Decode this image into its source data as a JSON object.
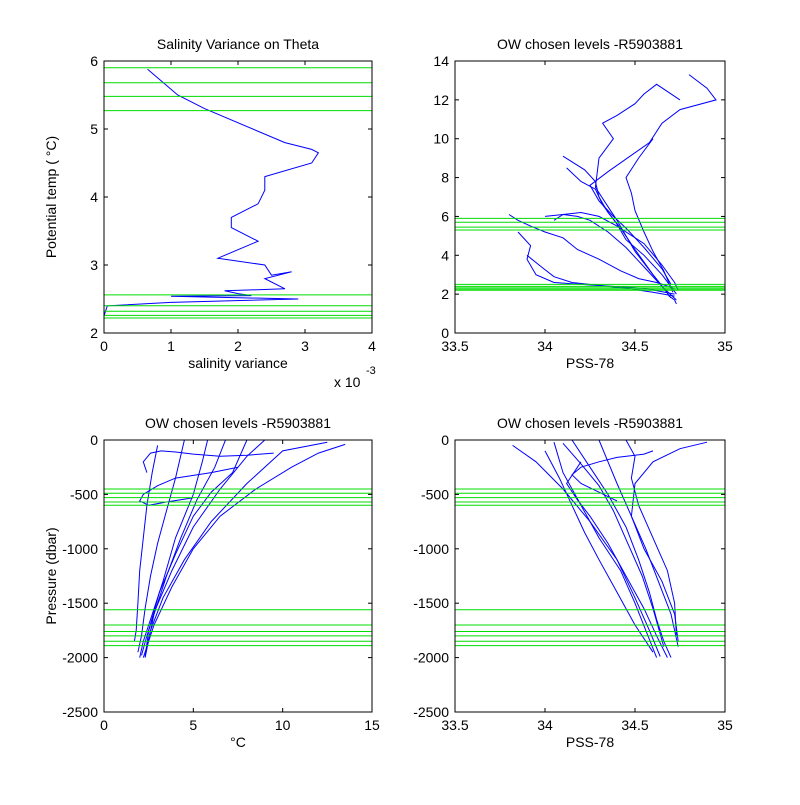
{
  "colors": {
    "profile": "#0000ff",
    "levels": "#00dd00",
    "axes": "#000000",
    "background": "#ffffff"
  },
  "chart_data": [
    {
      "type": "line",
      "title": "Salinity Variance on Theta",
      "xlabel": "salinity variance",
      "ylabel": "Potential temp ( °C)",
      "x_multiplier": "x 10",
      "x_exponent": "-3",
      "xlim": [
        0,
        0.004
      ],
      "ylim": [
        2,
        6
      ],
      "xticks": [
        0,
        0.001,
        0.002,
        0.003,
        0.004
      ],
      "xtick_labels": [
        "0",
        "1",
        "2",
        "3",
        "4"
      ],
      "yticks": [
        2,
        3,
        4,
        5,
        6
      ],
      "ytick_labels": [
        "2",
        "3",
        "4",
        "5",
        "6"
      ],
      "grid": false,
      "series": [
        {
          "x": [
            0.00065,
            0.0011,
            0.0015,
            0.0027,
            0.0031,
            0.0032,
            0.0031,
            0.0024,
            0.0024,
            0.0023,
            0.0019,
            0.0019,
            0.0023,
            0.0017,
            0.0024,
            0.0025,
            0.0028,
            0.0024,
            0.0027,
            0.0018,
            0.002,
            0.0022,
            0.001,
            0.0029,
            0.001,
            5e-05,
            0.0
          ],
          "y": [
            5.88,
            5.5,
            5.3,
            4.8,
            4.7,
            4.65,
            4.5,
            4.3,
            4.1,
            3.9,
            3.7,
            3.55,
            3.35,
            3.1,
            3.0,
            2.85,
            2.9,
            2.8,
            2.65,
            2.62,
            2.58,
            2.55,
            2.54,
            2.5,
            2.45,
            2.4,
            2.25
          ]
        }
      ],
      "hlines": [
        5.9,
        5.68,
        5.48,
        5.27,
        2.56,
        2.4,
        2.32,
        2.26,
        2.22
      ]
    },
    {
      "type": "line",
      "title": "OW chosen levels -R5903881",
      "xlabel": "PSS-78",
      "ylabel": "",
      "xlim": [
        33.5,
        35
      ],
      "ylim": [
        0,
        14
      ],
      "xticks": [
        33.5,
        34,
        34.5,
        35
      ],
      "xtick_labels": [
        "33.5",
        "34",
        "34.5",
        "35"
      ],
      "yticks": [
        0,
        2,
        4,
        6,
        8,
        10,
        12,
        14
      ],
      "ytick_labels": [
        "0",
        "2",
        "4",
        "6",
        "8",
        "10",
        "12",
        "14"
      ],
      "grid": false,
      "series": [
        {
          "x": [
            34.73,
            34.72,
            34.69,
            34.67,
            34.6,
            34.5,
            34.45,
            34.4,
            34.35,
            34.28,
            34.3,
            34.38,
            34.32,
            34.4,
            34.5,
            34.55,
            34.62,
            34.75
          ],
          "y": [
            1.5,
            1.7,
            1.9,
            2.2,
            3.0,
            4.2,
            5.0,
            5.8,
            6.5,
            7.5,
            9.0,
            10.0,
            10.8,
            11.2,
            11.8,
            12.3,
            12.8,
            12.0
          ]
        },
        {
          "x": [
            34.73,
            34.65,
            34.55,
            34.45,
            34.35,
            34.25,
            34.18,
            34.1,
            34.0
          ],
          "y": [
            1.7,
            2.4,
            3.4,
            4.4,
            5.2,
            5.8,
            6.0,
            6.1,
            6.0
          ]
        },
        {
          "x": [
            34.72,
            34.55,
            34.38,
            34.2,
            34.05,
            33.95,
            33.9,
            33.92,
            33.85
          ],
          "y": [
            2.0,
            2.3,
            2.4,
            2.5,
            2.6,
            3.0,
            3.8,
            4.5,
            5.2
          ]
        },
        {
          "x": [
            34.7,
            34.6,
            34.5,
            34.42,
            34.35,
            34.3,
            34.28,
            34.22,
            34.1
          ],
          "y": [
            1.8,
            3.0,
            4.3,
            5.4,
            6.2,
            7.0,
            7.8,
            8.4,
            9.1
          ]
        },
        {
          "x": [
            34.71,
            34.66,
            34.6,
            34.55,
            34.5,
            34.48,
            34.45,
            34.52,
            34.6
          ],
          "y": [
            2.1,
            3.2,
            4.2,
            5.2,
            6.3,
            7.2,
            8.0,
            9.0,
            10.0
          ]
        },
        {
          "x": [
            34.72,
            34.62,
            34.52,
            34.42,
            34.3,
            34.18,
            34.1,
            34.0,
            33.92,
            33.85,
            33.8
          ],
          "y": [
            2.3,
            2.6,
            2.8,
            3.2,
            3.8,
            4.3,
            4.9,
            5.2,
            5.5,
            5.8,
            6.1
          ]
        },
        {
          "x": [
            34.74,
            34.72,
            34.65,
            34.55,
            34.4,
            34.3,
            34.2,
            34.1,
            34.05
          ],
          "y": [
            2.2,
            2.6,
            3.5,
            4.6,
            5.5,
            6.0,
            6.2,
            6.1,
            5.8
          ]
        },
        {
          "x": [
            34.7,
            34.65,
            34.55,
            34.45,
            34.38,
            34.3,
            34.25,
            34.35,
            34.58,
            34.65,
            34.75,
            34.95,
            34.9,
            34.8
          ],
          "y": [
            2.5,
            3.3,
            4.4,
            5.4,
            6.0,
            6.8,
            7.6,
            8.3,
            9.8,
            10.8,
            11.5,
            12.0,
            12.6,
            13.3
          ]
        },
        {
          "x": [
            34.72,
            34.6,
            34.45,
            34.3,
            34.15,
            34.05,
            33.98,
            33.9
          ],
          "y": [
            1.9,
            2.1,
            2.3,
            2.45,
            2.6,
            2.9,
            3.4,
            4.0
          ]
        },
        {
          "x": [
            34.73,
            34.65,
            34.55,
            34.45,
            34.4,
            34.32,
            34.28,
            34.2,
            34.12
          ],
          "y": [
            2.0,
            3.0,
            4.0,
            4.8,
            5.6,
            6.6,
            7.4,
            7.8,
            8.5
          ]
        }
      ],
      "hlines": [
        5.9,
        5.7,
        5.45,
        5.3,
        2.5,
        2.4,
        2.32,
        2.26,
        2.2
      ]
    },
    {
      "type": "line",
      "title": "OW chosen levels -R5903881",
      "xlabel": "°C",
      "ylabel": "Pressure (dbar)",
      "xlim": [
        0,
        15
      ],
      "ylim": [
        -2500,
        0
      ],
      "xticks": [
        0,
        5,
        10,
        15
      ],
      "xtick_labels": [
        "0",
        "5",
        "10",
        "15"
      ],
      "yticks": [
        -2500,
        -2000,
        -1500,
        -1000,
        -500,
        0
      ],
      "ytick_labels": [
        "-2500",
        "-2000",
        "-1500",
        "-1000",
        "-500",
        "0"
      ],
      "grid": false,
      "series": [
        {
          "x": [
            5.8,
            5.5,
            5.0,
            4.0,
            3.3,
            2.6,
            2.2,
            2.0
          ],
          "y": [
            0,
            -200,
            -500,
            -900,
            -1300,
            -1650,
            -1850,
            -2000
          ]
        },
        {
          "x": [
            9.0,
            8.0,
            6.5,
            5.0,
            3.8,
            2.9,
            2.4,
            2.1
          ],
          "y": [
            0,
            -150,
            -450,
            -800,
            -1200,
            -1550,
            -1800,
            -1980
          ]
        },
        {
          "x": [
            12.5,
            10.0,
            8.0,
            6.0,
            4.5,
            3.3,
            2.6,
            2.3
          ],
          "y": [
            -20,
            -100,
            -400,
            -750,
            -1100,
            -1450,
            -1750,
            -1970
          ]
        },
        {
          "x": [
            3.0,
            2.7,
            2.4,
            2.2,
            2.0,
            1.9,
            1.8,
            1.7
          ],
          "y": [
            -50,
            -300,
            -600,
            -900,
            -1200,
            -1500,
            -1750,
            -1850
          ]
        },
        {
          "x": [
            6.8,
            6.2,
            5.2,
            4.3,
            3.5,
            2.8,
            2.3
          ],
          "y": [
            0,
            -250,
            -550,
            -900,
            -1250,
            -1600,
            -2000
          ]
        },
        {
          "x": [
            8.0,
            7.2,
            6.0,
            5.0,
            4.0,
            3.1,
            2.5,
            2.3
          ],
          "y": [
            0,
            -300,
            -480,
            -700,
            -1050,
            -1400,
            -1750,
            -1990
          ]
        },
        {
          "x": [
            2.4,
            2.2,
            2.6,
            3.2,
            4.0,
            5.0,
            6.5,
            8.0,
            9.5
          ],
          "y": [
            -300,
            -200,
            -120,
            -100,
            -110,
            -130,
            -150,
            -140,
            -120
          ]
        },
        {
          "x": [
            4.5,
            4.0,
            3.5,
            3.0,
            2.6,
            2.3,
            2.1,
            1.9
          ],
          "y": [
            0,
            -350,
            -650,
            -950,
            -1250,
            -1550,
            -1800,
            -1950
          ]
        },
        {
          "x": [
            13.5,
            12.0,
            10.5,
            8.5,
            6.5,
            5.0,
            3.8,
            2.8,
            2.2
          ],
          "y": [
            -40,
            -120,
            -250,
            -450,
            -700,
            -1000,
            -1350,
            -1700,
            -2000
          ]
        },
        {
          "x": [
            7.5,
            6.0,
            4.0,
            3.0,
            2.2,
            2.0,
            2.5,
            3.5,
            5.0
          ],
          "y": [
            -250,
            -300,
            -350,
            -420,
            -500,
            -560,
            -600,
            -570,
            -530
          ]
        }
      ],
      "hlines": [
        -450,
        -490,
        -530,
        -570,
        -600,
        -1560,
        -1700,
        -1760,
        -1800,
        -1850,
        -1890
      ]
    },
    {
      "type": "line",
      "title": "OW chosen levels -R5903881",
      "xlabel": "PSS-78",
      "ylabel": "",
      "xlim": [
        33.5,
        35
      ],
      "ylim": [
        -2500,
        0
      ],
      "xticks": [
        33.5,
        34,
        34.5,
        35
      ],
      "xtick_labels": [
        "33.5",
        "34",
        "34.5",
        "35"
      ],
      "yticks": [
        -2500,
        -2000,
        -1500,
        -1000,
        -500,
        0
      ],
      "ytick_labels": [
        "-2500",
        "-2000",
        "-1500",
        "-1000",
        "-500",
        "0"
      ],
      "grid": false,
      "series": [
        {
          "x": [
            34.15,
            34.25,
            34.35,
            34.45,
            34.52,
            34.58,
            34.62,
            34.66,
            34.7
          ],
          "y": [
            0,
            -250,
            -500,
            -800,
            -1100,
            -1400,
            -1650,
            -1850,
            -2000
          ]
        },
        {
          "x": [
            34.05,
            34.1,
            34.2,
            34.3,
            34.42,
            34.5,
            34.56,
            34.62
          ],
          "y": [
            -20,
            -300,
            -600,
            -900,
            -1200,
            -1500,
            -1750,
            -2000
          ]
        },
        {
          "x": [
            33.82,
            33.95,
            34.1,
            34.25,
            34.4,
            34.5,
            34.58,
            34.64
          ],
          "y": [
            -50,
            -200,
            -450,
            -750,
            -1100,
            -1450,
            -1750,
            -1990
          ]
        },
        {
          "x": [
            34.3,
            34.35,
            34.4,
            34.48,
            34.56,
            34.63,
            34.7,
            34.74
          ],
          "y": [
            0,
            -200,
            -400,
            -700,
            -1000,
            -1300,
            -1600,
            -1900
          ]
        },
        {
          "x": [
            34.9,
            34.75,
            34.6,
            34.5,
            34.48,
            34.55,
            34.65,
            34.72,
            34.74
          ],
          "y": [
            -20,
            -80,
            -200,
            -400,
            -700,
            -1000,
            -1300,
            -1600,
            -1850
          ]
        },
        {
          "x": [
            34.2,
            34.12,
            34.18,
            34.25,
            34.35,
            34.45,
            34.55,
            34.62,
            34.68
          ],
          "y": [
            -200,
            -400,
            -550,
            -700,
            -950,
            -1250,
            -1550,
            -1800,
            -2000
          ]
        },
        {
          "x": [
            34.0,
            34.08,
            34.15,
            34.22,
            34.3,
            34.4,
            34.5,
            34.6
          ],
          "y": [
            -100,
            -350,
            -600,
            -850,
            -1100,
            -1400,
            -1700,
            -1950
          ]
        },
        {
          "x": [
            34.45,
            34.5,
            34.48,
            34.52,
            34.6,
            34.68,
            34.72,
            34.73
          ],
          "y": [
            0,
            -150,
            -350,
            -600,
            -900,
            -1200,
            -1500,
            -1800
          ]
        },
        {
          "x": [
            34.6,
            34.55,
            34.4,
            34.3,
            34.2,
            34.15,
            34.2,
            34.3,
            34.4
          ],
          "y": [
            -100,
            -130,
            -160,
            -200,
            -250,
            -320,
            -400,
            -480,
            -560
          ]
        },
        {
          "x": [
            34.1,
            34.2,
            34.3,
            34.38,
            34.46,
            34.54,
            34.6,
            34.66
          ],
          "y": [
            -30,
            -220,
            -420,
            -650,
            -950,
            -1250,
            -1550,
            -1900
          ]
        }
      ],
      "hlines": [
        -450,
        -490,
        -530,
        -570,
        -600,
        -1560,
        -1700,
        -1760,
        -1800,
        -1850,
        -1890
      ]
    }
  ]
}
